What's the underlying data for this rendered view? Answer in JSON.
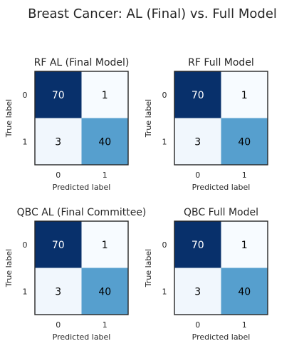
{
  "figure": {
    "title": "Breast Cancer: AL (Final) vs. Full Model"
  },
  "chart_data": [
    {
      "type": "heatmap",
      "title": "RF AL (Final Model)",
      "xlabel": "Predicted label",
      "ylabel": "True label",
      "x_ticks": [
        "0",
        "1"
      ],
      "y_ticks": [
        "0",
        "1"
      ],
      "values": [
        [
          70,
          1
        ],
        [
          3,
          40
        ]
      ],
      "colormap": "Blues",
      "grid": false
    },
    {
      "type": "heatmap",
      "title": "RF Full Model",
      "xlabel": "Predicted label",
      "ylabel": "True label",
      "x_ticks": [
        "0",
        "1"
      ],
      "y_ticks": [
        "0",
        "1"
      ],
      "values": [
        [
          70,
          1
        ],
        [
          3,
          40
        ]
      ],
      "colormap": "Blues",
      "grid": false
    },
    {
      "type": "heatmap",
      "title": "QBC AL (Final Committee)",
      "xlabel": "Predicted label",
      "ylabel": "True label",
      "x_ticks": [
        "0",
        "1"
      ],
      "y_ticks": [
        "0",
        "1"
      ],
      "values": [
        [
          70,
          1
        ],
        [
          3,
          40
        ]
      ],
      "colormap": "Blues",
      "grid": false
    },
    {
      "type": "heatmap",
      "title": "QBC Full Model",
      "xlabel": "Predicted label",
      "ylabel": "True label",
      "x_ticks": [
        "0",
        "1"
      ],
      "y_ticks": [
        "0",
        "1"
      ],
      "values": [
        [
          70,
          1
        ],
        [
          3,
          40
        ]
      ],
      "colormap": "Blues",
      "grid": false
    }
  ]
}
